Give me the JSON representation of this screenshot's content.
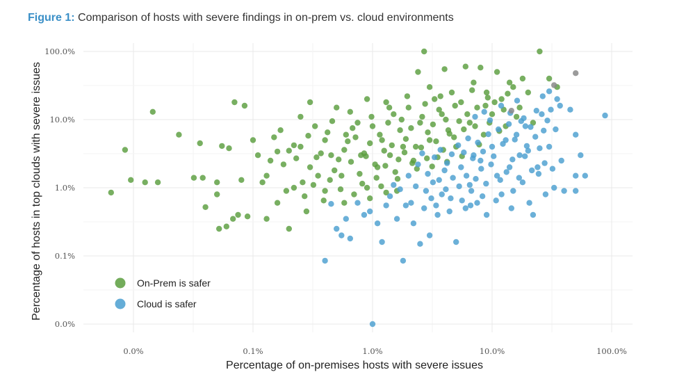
{
  "figure": {
    "label": "Figure 1:",
    "title": "Comparison of hosts with severe findings in on-prem vs. cloud environments"
  },
  "chart_data": {
    "type": "scatter",
    "xlabel": "Percentage of on-premises hosts with severe issues",
    "ylabel": "Percentage of hosts in top clouds with severe issues",
    "x_scale": "log",
    "y_scale": "log",
    "x_tick_labels": [
      "0.0%",
      "0.1%",
      "1.0%",
      "10.0%",
      "100.0%"
    ],
    "y_tick_labels": [
      "100.0%",
      "10.0%",
      "1.0%",
      "0.1%",
      "0.0%"
    ],
    "grid": true,
    "legend_position": "bottom-left",
    "colors": {
      "on_prem": "#5a9e3e",
      "cloud": "#4a9fd0",
      "tie": "#8a8a8a"
    },
    "series": [
      {
        "name": "On-Prem is safer",
        "color": "#5a9e3e",
        "points": [
          [
            0.0065,
            0.85
          ],
          [
            0.0085,
            3.6
          ],
          [
            0.0095,
            1.3
          ],
          [
            0.0125,
            1.2
          ],
          [
            0.0145,
            13
          ],
          [
            0.016,
            1.2
          ],
          [
            0.024,
            6
          ],
          [
            0.032,
            1.4
          ],
          [
            0.036,
            4.5
          ],
          [
            0.038,
            1.4
          ],
          [
            0.04,
            0.52
          ],
          [
            0.05,
            0.8
          ],
          [
            0.05,
            1.2
          ],
          [
            0.052,
            0.25
          ],
          [
            0.055,
            4.1
          ],
          [
            0.06,
            0.27
          ],
          [
            0.063,
            3.8
          ],
          [
            0.068,
            0.35
          ],
          [
            0.07,
            18
          ],
          [
            0.085,
            16
          ],
          [
            0.08,
            1.3
          ],
          [
            0.075,
            0.4
          ],
          [
            0.09,
            0.38
          ],
          [
            0.1,
            5
          ],
          [
            0.11,
            3
          ],
          [
            0.12,
            1.2
          ],
          [
            0.13,
            0.35
          ],
          [
            0.14,
            2.5
          ],
          [
            0.15,
            5.5
          ],
          [
            0.16,
            0.6
          ],
          [
            0.17,
            7
          ],
          [
            0.2,
            0.25
          ],
          [
            0.2,
            3.5
          ],
          [
            0.22,
            1
          ],
          [
            0.25,
            11
          ],
          [
            0.25,
            4
          ],
          [
            0.28,
            0.45
          ],
          [
            0.3,
            2
          ],
          [
            0.3,
            18
          ],
          [
            0.33,
            8
          ],
          [
            0.35,
            1.5
          ],
          [
            0.4,
            5
          ],
          [
            0.4,
            0.9
          ],
          [
            0.45,
            3
          ],
          [
            0.5,
            15
          ],
          [
            0.55,
            1.5
          ],
          [
            0.6,
            6
          ],
          [
            0.65,
            13
          ],
          [
            0.7,
            0.8
          ],
          [
            0.75,
            9
          ],
          [
            0.8,
            3
          ],
          [
            0.9,
            20
          ],
          [
            0.9,
            1
          ],
          [
            1,
            8
          ],
          [
            1.1,
            2
          ],
          [
            1.2,
            5
          ],
          [
            1.3,
            18
          ],
          [
            1.4,
            3
          ],
          [
            1.5,
            12
          ],
          [
            1.6,
            0.9
          ],
          [
            1.7,
            7
          ],
          [
            1.8,
            4
          ],
          [
            2,
            15
          ],
          [
            2.2,
            2.5
          ],
          [
            2.4,
            50
          ],
          [
            2.5,
            9
          ],
          [
            2.7,
            100
          ],
          [
            3,
            30
          ],
          [
            3,
            5
          ],
          [
            3.3,
            20
          ],
          [
            3.5,
            2.8
          ],
          [
            3.8,
            12
          ],
          [
            4,
            55
          ],
          [
            4.3,
            7
          ],
          [
            4.6,
            25
          ],
          [
            5,
            4
          ],
          [
            5.5,
            18
          ],
          [
            6,
            60
          ],
          [
            6.5,
            9
          ],
          [
            7,
            35
          ],
          [
            7.5,
            15
          ],
          [
            8,
            58
          ],
          [
            8.5,
            6
          ],
          [
            9,
            25
          ],
          [
            10,
            12
          ],
          [
            11,
            50
          ],
          [
            12,
            20
          ],
          [
            13,
            8
          ],
          [
            14,
            35
          ],
          [
            15,
            30
          ],
          [
            18,
            40
          ],
          [
            20,
            25
          ],
          [
            25,
            100
          ],
          [
            30,
            40
          ],
          [
            35,
            30
          ],
          [
            0.13,
            1.5
          ],
          [
            0.18,
            2.2
          ],
          [
            0.26,
            1.2
          ],
          [
            0.34,
            2.8
          ],
          [
            0.42,
            6.5
          ],
          [
            0.48,
            1.8
          ],
          [
            0.58,
            3.6
          ],
          [
            0.66,
            2.4
          ],
          [
            0.72,
            5.5
          ],
          [
            0.85,
            3.2
          ],
          [
            0.95,
            4.5
          ],
          [
            1.05,
            2.2
          ],
          [
            1.15,
            6
          ],
          [
            1.25,
            3.5
          ],
          [
            1.35,
            9
          ],
          [
            1.45,
            4.2
          ],
          [
            1.65,
            2.6
          ],
          [
            1.75,
            10
          ],
          [
            1.9,
            5.2
          ],
          [
            2.1,
            7.5
          ],
          [
            2.3,
            4
          ],
          [
            2.6,
            11
          ],
          [
            2.9,
            6.5
          ],
          [
            3.2,
            8.5
          ],
          [
            3.6,
            14
          ],
          [
            4.1,
            10
          ],
          [
            4.8,
            5.5
          ],
          [
            5.3,
            9.5
          ],
          [
            6.2,
            12
          ],
          [
            7.2,
            8
          ],
          [
            8.8,
            16
          ],
          [
            9.5,
            9
          ],
          [
            10.5,
            18
          ],
          [
            12.5,
            14
          ],
          [
            16,
            11
          ],
          [
            0.22,
            4.2
          ],
          [
            0.27,
            0.75
          ],
          [
            0.32,
            1.1
          ],
          [
            0.37,
            3.2
          ],
          [
            0.44,
            1.3
          ],
          [
            0.52,
            2.6
          ],
          [
            0.62,
            4.8
          ],
          [
            0.78,
            1.6
          ],
          [
            0.88,
            2.9
          ],
          [
            1.08,
            1.4
          ],
          [
            1.28,
            2.1
          ],
          [
            1.55,
            1.7
          ],
          [
            1.85,
            3.3
          ],
          [
            2.15,
            2.3
          ],
          [
            2.55,
            3.9
          ],
          [
            2.85,
            2.7
          ],
          [
            3.4,
            4.8
          ],
          [
            3.9,
            3.6
          ],
          [
            4.4,
            6.2
          ],
          [
            5.8,
            7.2
          ],
          [
            0.16,
            3.4
          ],
          [
            0.19,
            0.9
          ],
          [
            0.23,
            2.7
          ],
          [
            0.29,
            5.8
          ],
          [
            0.39,
            0.65
          ],
          [
            0.46,
            9.5
          ],
          [
            0.54,
            0.95
          ],
          [
            0.68,
            7.5
          ],
          [
            0.82,
            1.15
          ],
          [
            0.98,
            11
          ],
          [
            1.18,
            1.05
          ],
          [
            1.38,
            15
          ],
          [
            1.62,
            1.35
          ],
          [
            1.95,
            22
          ],
          [
            2.35,
            1.9
          ],
          [
            2.75,
            17
          ],
          [
            3.15,
            2.05
          ],
          [
            3.7,
            22
          ],
          [
            4.2,
            2.4
          ],
          [
            4.9,
            16
          ],
          [
            5.6,
            2.9
          ],
          [
            6.8,
            27
          ],
          [
            7.8,
            4.3
          ],
          [
            9.2,
            21
          ],
          [
            11.5,
            6.8
          ],
          [
            13.5,
            24
          ],
          [
            17,
            15
          ],
          [
            22,
            9
          ],
          [
            0.58,
            0.6
          ],
          [
            0.95,
            0.7
          ],
          [
            1.3,
            0.85
          ]
        ]
      },
      {
        "name": "Cloud is safer",
        "color": "#4a9fd0",
        "points": [
          [
            0.4,
            0.085
          ],
          [
            0.45,
            0.58
          ],
          [
            0.5,
            0.25
          ],
          [
            0.55,
            0.2
          ],
          [
            0.6,
            0.35
          ],
          [
            0.65,
            0.18
          ],
          [
            0.75,
            0.6
          ],
          [
            0.85,
            0.4
          ],
          [
            0.95,
            0.45
          ],
          [
            1,
            0.01
          ],
          [
            1.1,
            0.3
          ],
          [
            1.2,
            0.16
          ],
          [
            1.3,
            0.55
          ],
          [
            1.5,
            1.1
          ],
          [
            1.6,
            0.35
          ],
          [
            1.8,
            0.085
          ],
          [
            2,
            1.5
          ],
          [
            2.2,
            0.3
          ],
          [
            2.5,
            0.15
          ],
          [
            2.8,
            0.9
          ],
          [
            3,
            0.2
          ],
          [
            3.2,
            1.2
          ],
          [
            3.5,
            0.4
          ],
          [
            4,
            1.8
          ],
          [
            4.5,
            0.7
          ],
          [
            5,
            0.16
          ],
          [
            5.5,
            2
          ],
          [
            6,
            0.5
          ],
          [
            6.5,
            1.1
          ],
          [
            7,
            3
          ],
          [
            7.5,
            0.6
          ],
          [
            8,
            2.5
          ],
          [
            9,
            0.4
          ],
          [
            10,
            4
          ],
          [
            11,
            1.5
          ],
          [
            12,
            0.8
          ],
          [
            13,
            5
          ],
          [
            14,
            2
          ],
          [
            15,
            0.9
          ],
          [
            16,
            6
          ],
          [
            17,
            3
          ],
          [
            18,
            1.2
          ],
          [
            19,
            8
          ],
          [
            20,
            3.5
          ],
          [
            22,
            0.4
          ],
          [
            24,
            2
          ],
          [
            26,
            12
          ],
          [
            28,
            0.8
          ],
          [
            30,
            4
          ],
          [
            33,
            1
          ],
          [
            35,
            20
          ],
          [
            38,
            2.5
          ],
          [
            40,
            0.9
          ],
          [
            45,
            14
          ],
          [
            50,
            6
          ],
          [
            50,
            1.5
          ],
          [
            50,
            0.9
          ],
          [
            55,
            3
          ],
          [
            60,
            1.5
          ],
          [
            88,
            11.5
          ],
          [
            2.4,
            2.2
          ],
          [
            2.6,
            3.2
          ],
          [
            2.9,
            1.6
          ],
          [
            3.3,
            2.8
          ],
          [
            3.7,
            3.6
          ],
          [
            4.2,
            2.3
          ],
          [
            4.6,
            3.1
          ],
          [
            5.2,
            4.2
          ],
          [
            5.8,
            3.3
          ],
          [
            6.3,
            5.3
          ],
          [
            6.9,
            2.7
          ],
          [
            7.6,
            4.6
          ],
          [
            8.4,
            3.4
          ],
          [
            9.3,
            6.1
          ],
          [
            10.3,
            2.9
          ],
          [
            11.3,
            7.2
          ],
          [
            12.3,
            4.4
          ],
          [
            13.8,
            8.6
          ],
          [
            15.5,
            5.1
          ],
          [
            17.5,
            9.5
          ],
          [
            19.5,
            4.1
          ],
          [
            21,
            7.8
          ],
          [
            23,
            5.6
          ],
          [
            25,
            3.8
          ],
          [
            27,
            6.9
          ],
          [
            29,
            9.7
          ],
          [
            31,
            14
          ],
          [
            34,
            7.2
          ],
          [
            37,
            16
          ],
          [
            3.1,
            0.7
          ],
          [
            3.6,
            1.3
          ],
          [
            4.1,
            0.95
          ],
          [
            4.7,
            1.4
          ],
          [
            5.3,
            1.05
          ],
          [
            6.1,
            1.5
          ],
          [
            6.7,
            0.9
          ],
          [
            7.3,
            1.35
          ],
          [
            8.1,
            1.9
          ],
          [
            8.9,
            1.15
          ],
          [
            9.8,
            2.2
          ],
          [
            11.7,
            1.3
          ],
          [
            13.2,
            1.7
          ],
          [
            14.8,
            2.6
          ],
          [
            16.8,
            1.4
          ],
          [
            18.8,
            2.9
          ],
          [
            21.5,
            1.8
          ],
          [
            24.5,
            1.6
          ],
          [
            27.5,
            2.3
          ],
          [
            32,
            1.9
          ],
          [
            2.1,
            0.6
          ],
          [
            2.3,
            1.05
          ],
          [
            2.7,
            0.5
          ],
          [
            3.4,
            0.55
          ],
          [
            3.8,
            0.8
          ],
          [
            4.4,
            0.45
          ],
          [
            5.6,
            0.65
          ],
          [
            6.6,
            0.55
          ],
          [
            8.3,
            0.75
          ],
          [
            10.8,
            0.65
          ],
          [
            14.5,
            0.5
          ],
          [
            20.5,
            0.6
          ],
          [
            1.4,
            0.75
          ],
          [
            1.7,
            0.95
          ],
          [
            1.9,
            0.55
          ],
          [
            7.2,
            11
          ],
          [
            8.6,
            13
          ],
          [
            9.6,
            9.8
          ],
          [
            11.9,
            16
          ],
          [
            14.2,
            12.5
          ],
          [
            16.2,
            19
          ],
          [
            18.4,
            10.5
          ],
          [
            23.5,
            13.5
          ],
          [
            26.5,
            22
          ],
          [
            30,
            26
          ]
        ]
      }
    ],
    "tie_points": [
      [
        14.5,
        13.5
      ],
      [
        33,
        32
      ],
      [
        50,
        48
      ]
    ]
  },
  "legend": {
    "on_prem": "On-Prem is safer",
    "cloud": "Cloud is safer"
  }
}
